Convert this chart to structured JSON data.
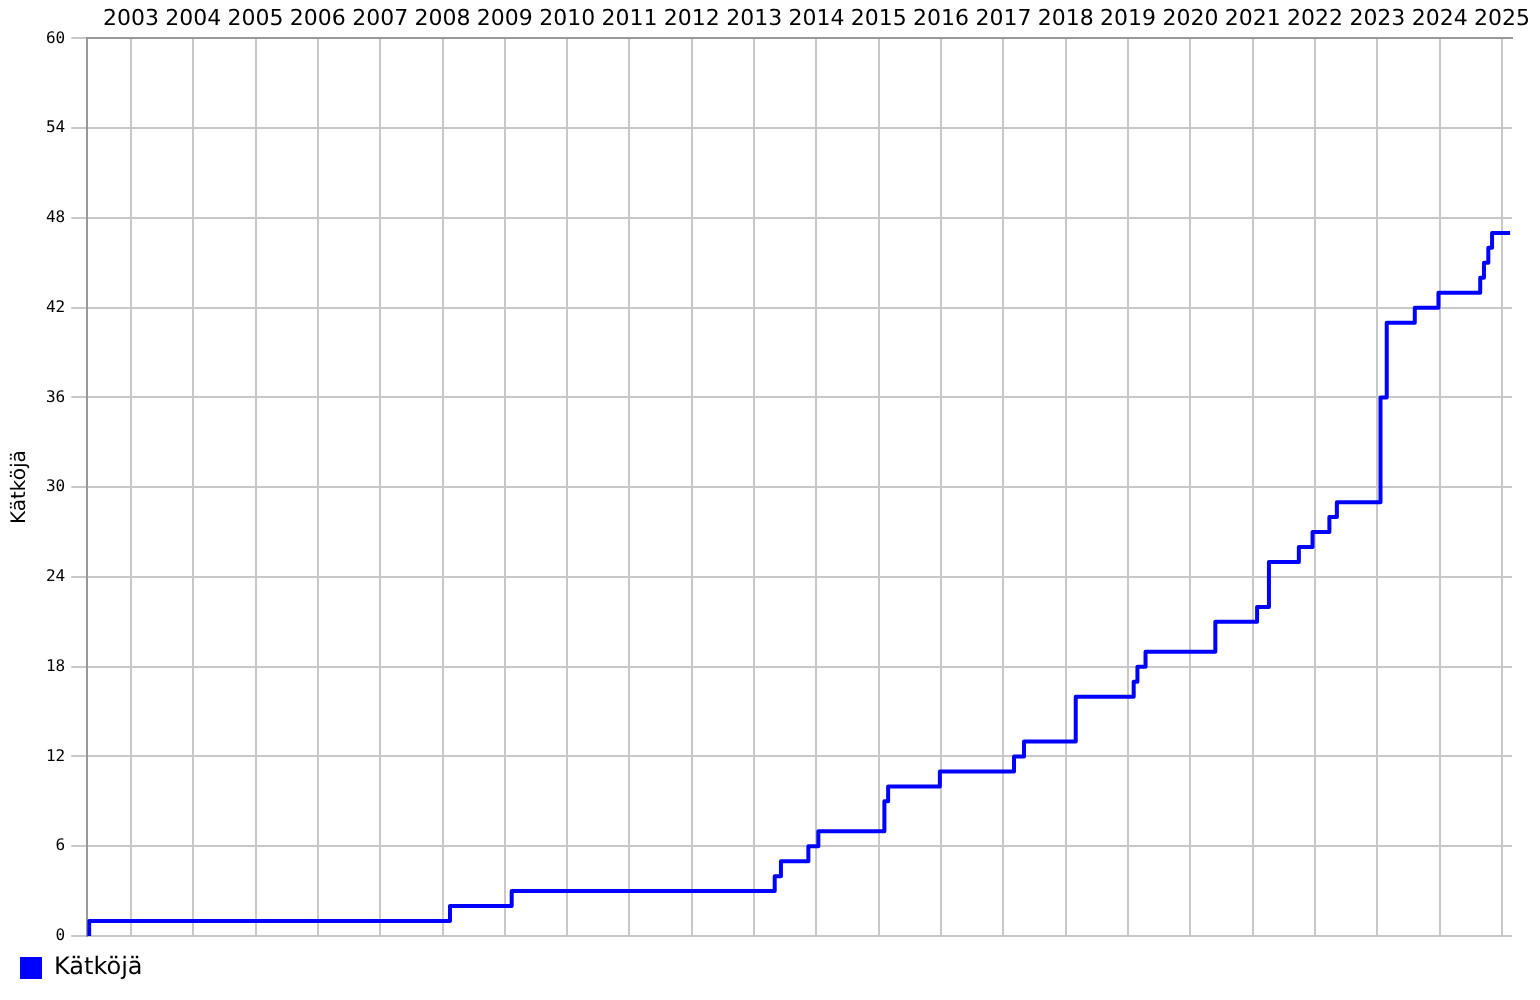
{
  "chart_data": {
    "type": "step",
    "ylabel": "Kätköjä",
    "xlim": [
      2002.8,
      2025.66
    ],
    "xticks": [
      {
        "value": 2003.5,
        "label": "2003"
      },
      {
        "value": 2004.5,
        "label": "2004"
      },
      {
        "value": 2005.5,
        "label": "2005"
      },
      {
        "value": 2006.5,
        "label": "2006"
      },
      {
        "value": 2007.5,
        "label": "2007"
      },
      {
        "value": 2008.5,
        "label": "2008"
      },
      {
        "value": 2009.5,
        "label": "2009"
      },
      {
        "value": 2010.5,
        "label": "2010"
      },
      {
        "value": 2011.5,
        "label": "2011"
      },
      {
        "value": 2012.5,
        "label": "2012"
      },
      {
        "value": 2013.5,
        "label": "2013"
      },
      {
        "value": 2014.5,
        "label": "2014"
      },
      {
        "value": 2015.5,
        "label": "2015"
      },
      {
        "value": 2016.5,
        "label": "2016"
      },
      {
        "value": 2017.5,
        "label": "2017"
      },
      {
        "value": 2018.5,
        "label": "2018"
      },
      {
        "value": 2019.5,
        "label": "2019"
      },
      {
        "value": 2020.5,
        "label": "2020"
      },
      {
        "value": 2021.5,
        "label": "2021"
      },
      {
        "value": 2022.5,
        "label": "2022"
      },
      {
        "value": 2023.5,
        "label": "2023"
      },
      {
        "value": 2024.5,
        "label": "2024"
      },
      {
        "value": 2025.5,
        "label": "2025"
      }
    ],
    "ylim": [
      0,
      60
    ],
    "yticks": [
      0,
      6,
      12,
      18,
      24,
      30,
      36,
      42,
      48,
      54,
      60
    ],
    "grid": true,
    "legend": "bottom",
    "marker": "none",
    "series": [
      {
        "name": "Kätköjä",
        "color": "#0000ff",
        "x": [
          2002.8,
          2002.83,
          2008.62,
          2009.61,
          2013.83,
          2013.93,
          2014.37,
          2014.53,
          2015.59,
          2015.65,
          2016.48,
          2017.67,
          2017.83,
          2018.66,
          2019.59,
          2019.65,
          2019.78,
          2020.9,
          2021.57,
          2021.76,
          2022.24,
          2022.46,
          2022.73,
          2022.85,
          2023.55,
          2023.65,
          2024.1,
          2024.48,
          2025.15,
          2025.21,
          2025.28,
          2025.34,
          2025.63
        ],
        "values": [
          0,
          1,
          2,
          3,
          4,
          5,
          6,
          7,
          9,
          10,
          11,
          12,
          13,
          16,
          17,
          18,
          19,
          21,
          22,
          25,
          26,
          27,
          28,
          29,
          36,
          41,
          42,
          43,
          44,
          45,
          46,
          47,
          47
        ]
      }
    ]
  }
}
